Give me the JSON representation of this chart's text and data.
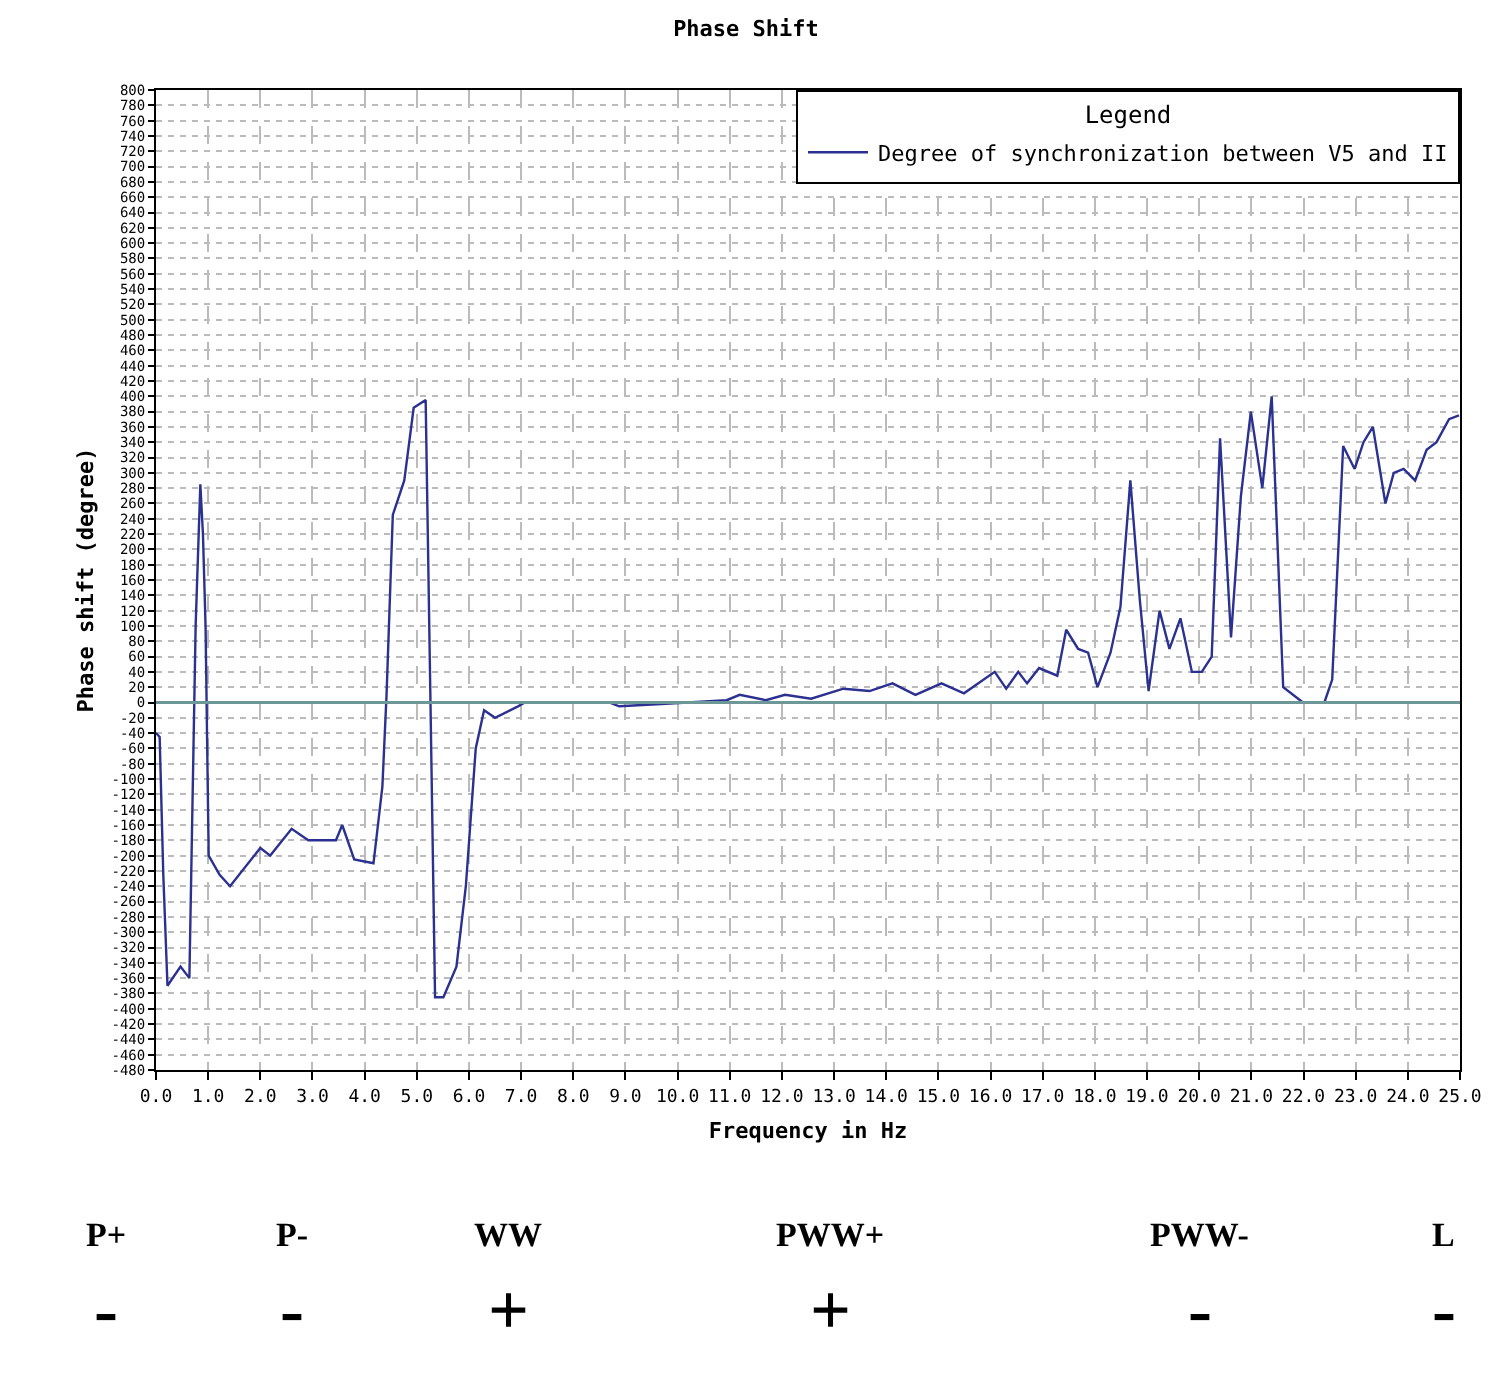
{
  "chart_data": {
    "type": "line",
    "title": "Phase Shift",
    "xlabel": "Frequency in Hz",
    "ylabel": "Phase shift (degree)",
    "legend_title": "Legend",
    "series": [
      {
        "name": "Degree of synchronization between V5 and II",
        "color": "#2b3190",
        "x": [
          0,
          0.07,
          0.14,
          0.22,
          0.47,
          0.64,
          0.76,
          0.85,
          0.9,
          0.95,
          1.01,
          1.22,
          1.42,
          2.0,
          2.19,
          2.6,
          2.92,
          3.45,
          3.57,
          3.8,
          4.17,
          4.34,
          4.42,
          4.54,
          4.76,
          4.94,
          5.17,
          5.26,
          5.35,
          5.51,
          5.76,
          5.94,
          6.13,
          6.29,
          6.5,
          6.94,
          7.07,
          8.69,
          8.88,
          9.69,
          10.94,
          11.19,
          11.69,
          12.06,
          12.56,
          13.18,
          13.68,
          14.12,
          14.56,
          15.06,
          15.49,
          16.08,
          16.3,
          16.53,
          16.7,
          16.93,
          17.28,
          17.45,
          17.68,
          17.87,
          18.05,
          18.3,
          18.49,
          18.68,
          18.86,
          19.03,
          19.24,
          19.43,
          19.64,
          19.86,
          20.05,
          20.24,
          20.4,
          20.61,
          20.8,
          20.99,
          21.21,
          21.39,
          21.61,
          21.99,
          22.4,
          22.55,
          22.76,
          22.98,
          23.15,
          23.33,
          23.57,
          23.73,
          23.92,
          24.14,
          24.36,
          24.55,
          24.79,
          24.98
        ],
        "values": [
          -40,
          -45,
          -225,
          -370,
          -345,
          -360,
          100,
          285,
          220,
          100,
          -200,
          -225,
          -240,
          -190,
          -200,
          -165,
          -180,
          -180,
          -160,
          -205,
          -210,
          -110,
          10,
          245,
          290,
          385,
          395,
          10,
          -385,
          -385,
          -345,
          -240,
          -60,
          -10,
          -20,
          -5,
          0,
          0,
          -5,
          -2,
          3,
          10,
          3,
          10,
          5,
          18,
          15,
          25,
          10,
          25,
          12,
          40,
          18,
          40,
          25,
          45,
          35,
          95,
          70,
          65,
          20,
          65,
          125,
          290,
          135,
          15,
          120,
          70,
          110,
          40,
          40,
          60,
          345,
          85,
          270,
          380,
          280,
          400,
          20,
          0,
          0,
          30,
          335,
          305,
          340,
          360,
          260,
          300,
          305,
          290,
          330,
          340,
          370,
          375
        ]
      }
    ],
    "xlim": [
      0,
      25
    ],
    "xticks": [
      {
        "value": 0,
        "label": "0.0"
      },
      {
        "value": 1,
        "label": "1.0"
      },
      {
        "value": 2,
        "label": "2.0"
      },
      {
        "value": 3,
        "label": "3.0"
      },
      {
        "value": 4,
        "label": "4.0"
      },
      {
        "value": 5,
        "label": "5.0"
      },
      {
        "value": 6,
        "label": "6.0"
      },
      {
        "value": 7,
        "label": "7.0"
      },
      {
        "value": 8,
        "label": "8.0"
      },
      {
        "value": 9,
        "label": "9.0"
      },
      {
        "value": 10,
        "label": "10.0"
      },
      {
        "value": 11,
        "label": "11.0"
      },
      {
        "value": 12,
        "label": "12.0"
      },
      {
        "value": 13,
        "label": "13.0"
      },
      {
        "value": 14,
        "label": "14.0"
      },
      {
        "value": 15,
        "label": "15.0"
      },
      {
        "value": 16,
        "label": "16.0"
      },
      {
        "value": 17,
        "label": "17.0"
      },
      {
        "value": 18,
        "label": "18.0"
      },
      {
        "value": 19,
        "label": "19.0"
      },
      {
        "value": 20,
        "label": "20.0"
      },
      {
        "value": 21,
        "label": "21.0"
      },
      {
        "value": 22,
        "label": "22.0"
      },
      {
        "value": 23,
        "label": "23.0"
      },
      {
        "value": 24,
        "label": "24.0"
      },
      {
        "value": 25,
        "label": "25.0"
      }
    ],
    "ylim": [
      -480,
      800
    ],
    "yticks": [
      -480,
      -460,
      -440,
      -420,
      -400,
      -380,
      -360,
      -340,
      -320,
      -300,
      -280,
      -260,
      -240,
      -220,
      -200,
      -180,
      -160,
      -140,
      -120,
      -100,
      -80,
      -60,
      -40,
      -20,
      0,
      20,
      40,
      60,
      80,
      100,
      120,
      140,
      160,
      180,
      200,
      220,
      240,
      260,
      280,
      300,
      320,
      340,
      360,
      380,
      400,
      420,
      440,
      460,
      480,
      500,
      520,
      540,
      560,
      580,
      600,
      620,
      640,
      660,
      680,
      700,
      720,
      740,
      760,
      780,
      800
    ],
    "ref_lines": [
      {
        "axis": "y",
        "value": 0,
        "color": "#6e9898"
      }
    ],
    "grid": true,
    "legend": "top right",
    "marker": "none",
    "line_style": "solid",
    "annotations": [
      "P+",
      "P-",
      "WW",
      "PWW+",
      "PWW-",
      "L",
      "-",
      "-",
      "+",
      "+",
      "-",
      "-"
    ]
  }
}
